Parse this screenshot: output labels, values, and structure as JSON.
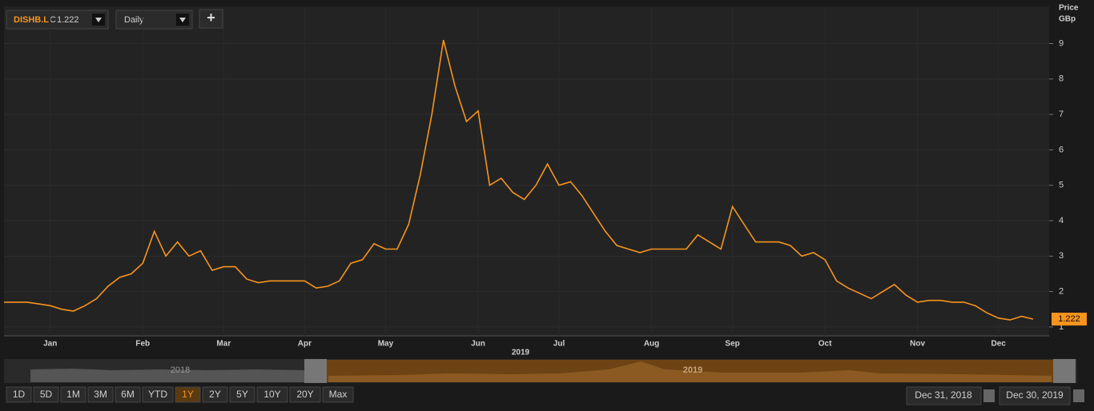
{
  "toolbar": {
    "ticker": "DISHB.L",
    "close_prefix": "C",
    "interval": "Daily",
    "add": "+"
  },
  "chart_data": {
    "type": "line",
    "categories": [
      null,
      null,
      null,
      null,
      "Jan",
      null,
      null,
      null,
      null,
      null,
      null,
      null,
      "Feb",
      null,
      null,
      null,
      null,
      null,
      null,
      "Mar",
      null,
      null,
      null,
      null,
      null,
      null,
      "Apr",
      null,
      null,
      null,
      null,
      null,
      null,
      "May",
      null,
      null,
      null,
      null,
      null,
      null,
      null,
      "Jun",
      null,
      null,
      null,
      null,
      null,
      null,
      "Jul",
      null,
      null,
      null,
      null,
      null,
      null,
      null,
      "Aug",
      null,
      null,
      null,
      null,
      null,
      null,
      "Sep",
      null,
      null,
      null,
      null,
      null,
      null,
      null,
      "Oct",
      null,
      null,
      null,
      null,
      null,
      null,
      null,
      "Nov",
      null,
      null,
      null,
      null,
      null,
      null,
      "Dec",
      null,
      null,
      null
    ],
    "values": [
      1.7,
      1.7,
      1.7,
      1.65,
      1.6,
      1.5,
      1.45,
      1.6,
      1.8,
      2.15,
      2.4,
      2.5,
      2.8,
      3.7,
      3.0,
      3.4,
      3.0,
      3.15,
      2.6,
      2.7,
      2.7,
      2.35,
      2.25,
      2.3,
      2.3,
      2.3,
      2.3,
      2.1,
      2.15,
      2.3,
      2.8,
      2.9,
      3.35,
      3.2,
      3.2,
      3.9,
      5.3,
      7.0,
      9.1,
      7.8,
      6.8,
      7.1,
      5.0,
      5.2,
      4.8,
      4.6,
      5.0,
      5.6,
      5.0,
      5.1,
      4.7,
      4.2,
      3.7,
      3.3,
      3.2,
      3.1,
      3.2,
      3.2,
      3.2,
      3.2,
      3.6,
      3.4,
      3.2,
      4.4,
      3.9,
      3.4,
      3.4,
      3.4,
      3.3,
      3.0,
      3.1,
      2.9,
      2.3,
      2.1,
      1.95,
      1.8,
      2.0,
      2.2,
      1.9,
      1.7,
      1.75,
      1.75,
      1.7,
      1.7,
      1.6,
      1.4,
      1.25,
      1.2,
      1.3,
      1.222
    ],
    "color": "#f7941d",
    "ylim": [
      0.75,
      10.05
    ],
    "yticks": [
      1,
      2,
      3,
      4,
      5,
      6,
      7,
      8,
      9
    ],
    "grid": true,
    "y_label": "Price",
    "y_unit": "GBp",
    "x_year_label": "2019"
  },
  "navigator": {
    "left_label": "2018",
    "right_label": "2019"
  },
  "range_buttons": [
    "1D",
    "5D",
    "1M",
    "3M",
    "6M",
    "YTD",
    "1Y",
    "2Y",
    "5Y",
    "10Y",
    "20Y",
    "Max"
  ],
  "selected_range": "1Y",
  "date_range": {
    "from": "Dec 31, 2018",
    "to": "Dec 30, 2019"
  }
}
